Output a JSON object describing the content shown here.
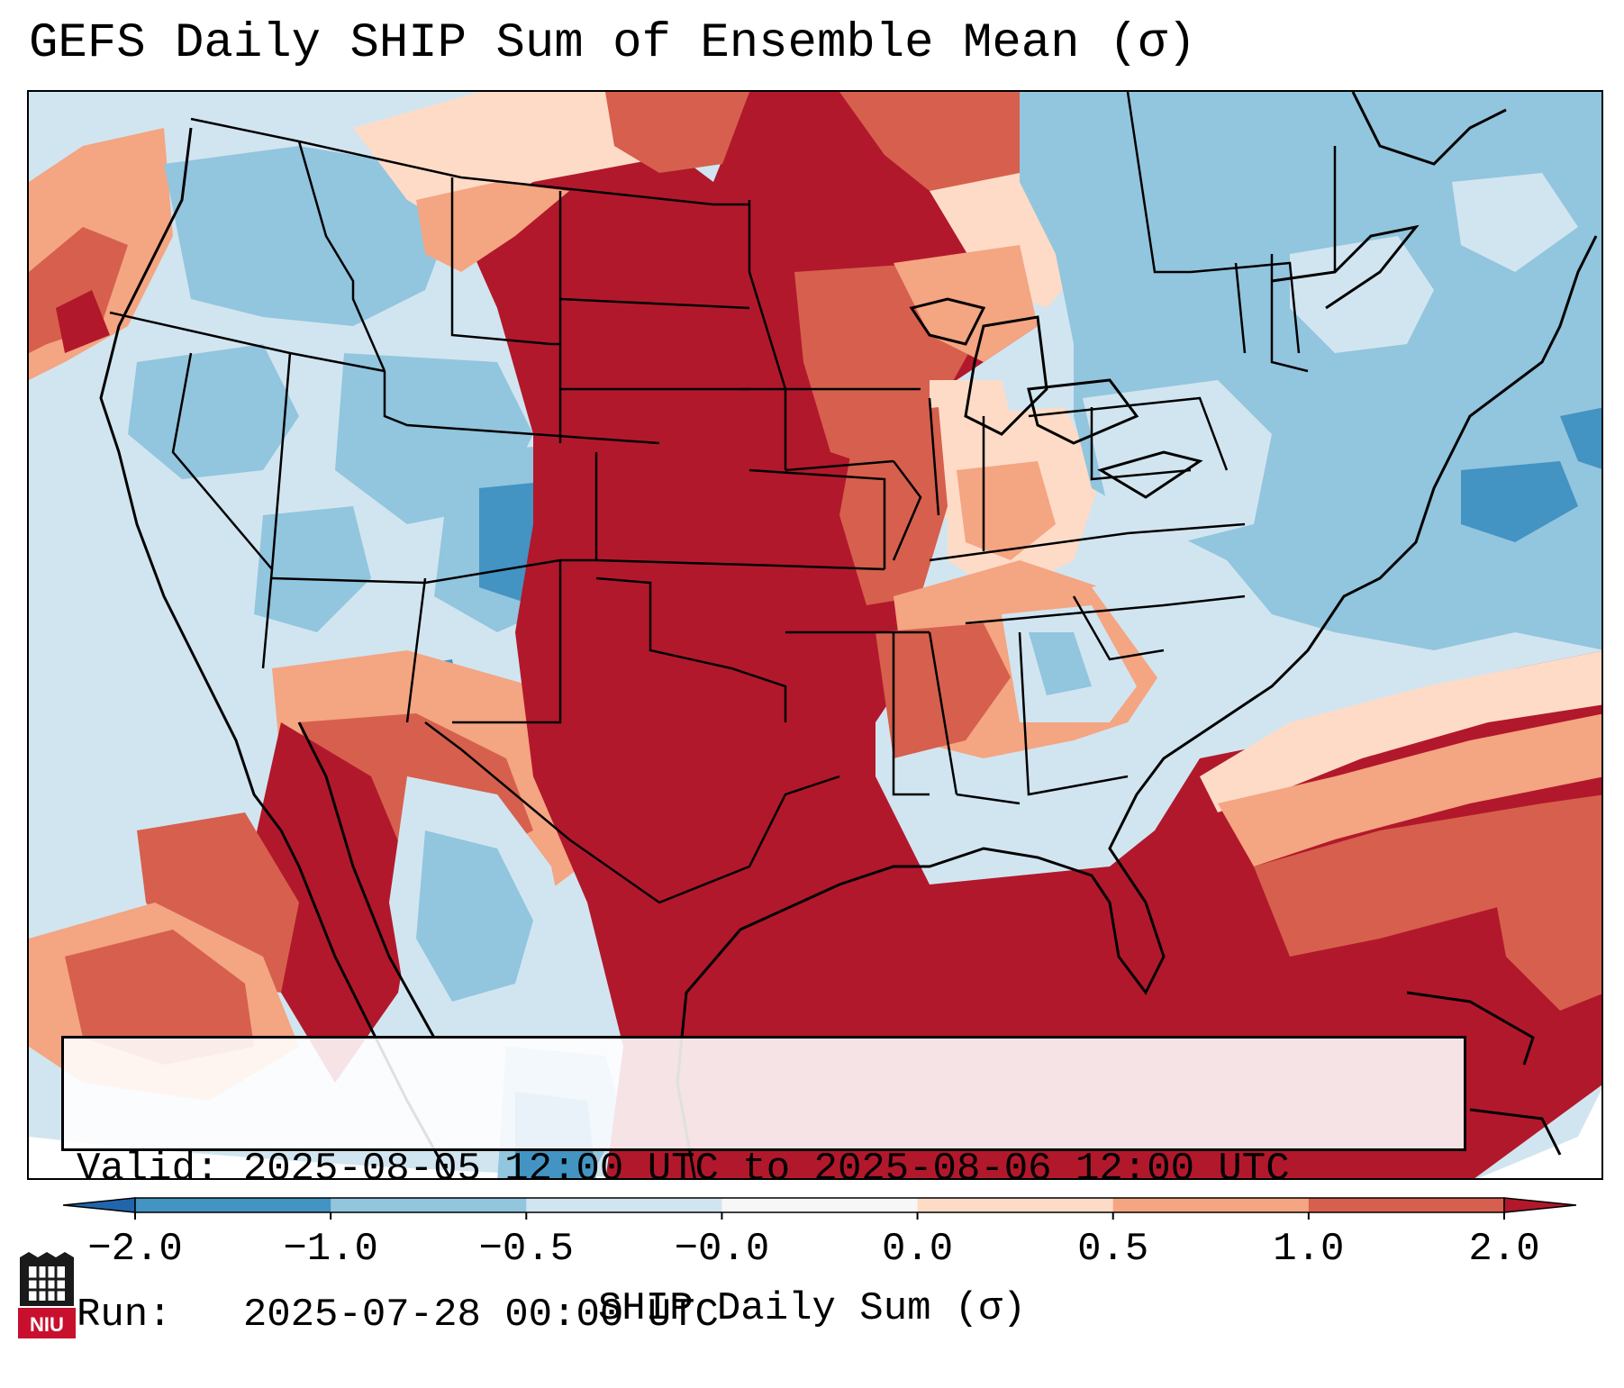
{
  "title": "GEFS Daily SHIP Sum of Ensemble Mean (σ)",
  "info": {
    "valid": "Valid: 2025-08-05 12:00 UTC to 2025-08-06 12:00 UTC",
    "run": "Run:   2025-07-28 00:00 UTC"
  },
  "colorbar": {
    "label": "SHIP Daily Sum (σ)",
    "ticks": [
      "−2.0",
      "−1.0",
      "−0.5",
      "−0.0",
      "0.0",
      "0.5",
      "1.0",
      "2.0"
    ],
    "colors": [
      "#4393c3",
      "#92c5de",
      "#d1e5f0",
      "#f7f7f7",
      "#fddbc7",
      "#f4a582",
      "#d6604d"
    ],
    "under_color": "#2166ac",
    "over_color": "#b2182b"
  },
  "logo": {
    "text": "NIU"
  }
}
